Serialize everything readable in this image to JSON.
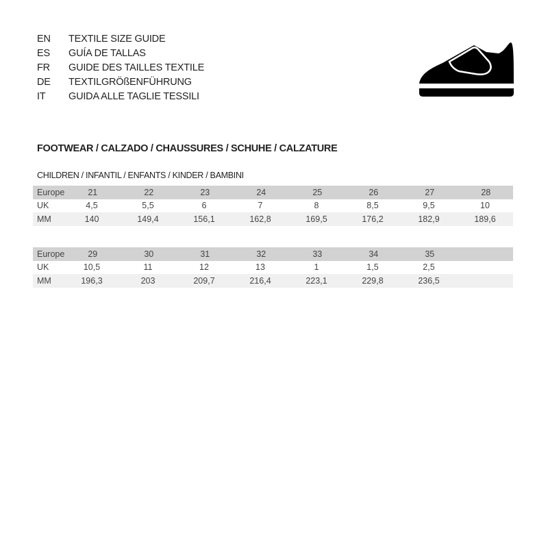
{
  "languages": [
    {
      "code": "EN",
      "title": "TEXTILE SIZE GUIDE"
    },
    {
      "code": "ES",
      "title": "GUÍA DE TALLAS"
    },
    {
      "code": "FR",
      "title": "GUIDE DES TAILLES TEXTILE"
    },
    {
      "code": "DE",
      "title": "TEXTILGRÖßENFÜHRUNG"
    },
    {
      "code": "IT",
      "title": "GUIDA ALLE TAGLIE TESSILI"
    }
  ],
  "icon": "shoe-velcro-icon",
  "section_title": "FOOTWEAR / CALZADO / CHAUSSURES / SCHUHE / CALZATURE",
  "sub_title": "CHILDREN / INFANTIL / ENFANTS / KINDER / BAMBINI",
  "tables": [
    {
      "rows": [
        {
          "label": "Europe",
          "values": [
            "21",
            "22",
            "23",
            "24",
            "25",
            "26",
            "27",
            "28"
          ]
        },
        {
          "label": "UK",
          "values": [
            "4,5",
            "5,5",
            "6",
            "7",
            "8",
            "8,5",
            "9,5",
            "10"
          ]
        },
        {
          "label": "MM",
          "values": [
            "140",
            "149,4",
            "156,1",
            "162,8",
            "169,5",
            "176,2",
            "182,9",
            "189,6"
          ]
        }
      ]
    },
    {
      "rows": [
        {
          "label": "Europe",
          "values": [
            "29",
            "30",
            "31",
            "32",
            "33",
            "34",
            "35",
            ""
          ]
        },
        {
          "label": "UK",
          "values": [
            "10,5",
            "11",
            "12",
            "13",
            "1",
            "1,5",
            "2,5",
            ""
          ]
        },
        {
          "label": "MM",
          "values": [
            "196,3",
            "203",
            "209,7",
            "216,4",
            "223,1",
            "229,8",
            "236,5",
            ""
          ]
        }
      ]
    }
  ]
}
